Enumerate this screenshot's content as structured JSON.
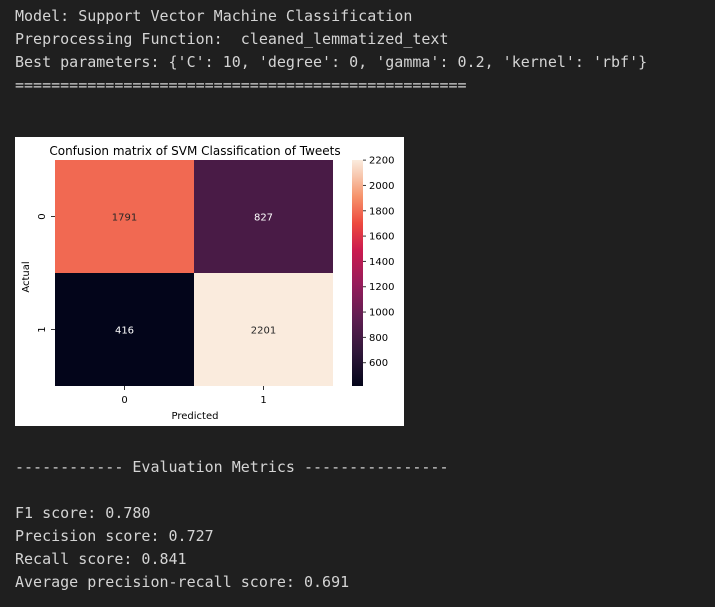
{
  "output": {
    "model_line": "Model: Support Vector Machine Classification",
    "preprocessing_line": "Preprocessing Function:  cleaned_lemmatized_text",
    "params_line": "Best parameters: {'C': 10, 'degree': 0, 'gamma': 0.2, 'kernel': 'rbf'}",
    "separator_line": "==================================================",
    "metrics_header": "------------ Evaluation Metrics ----------------",
    "f1_line": "F1 score: 0.780",
    "precision_line": "Precision score: 0.727",
    "recall_line": "Recall score: 0.841",
    "avg_pr_line": "Average precision-recall score: 0.691"
  },
  "chart_data": {
    "type": "heatmap",
    "title": "Confusion matrix of SVM Classification of Tweets",
    "xlabel": "Predicted",
    "ylabel": "Actual",
    "x_categories": [
      "0",
      "1"
    ],
    "y_categories": [
      "0",
      "1"
    ],
    "values": [
      [
        1791,
        827
      ],
      [
        416,
        2201
      ]
    ],
    "colorbar": {
      "range": [
        416,
        2201
      ],
      "ticks": [
        600,
        800,
        1000,
        1200,
        1400,
        1600,
        1800,
        2000,
        2200
      ],
      "colormap": "rocket"
    }
  }
}
